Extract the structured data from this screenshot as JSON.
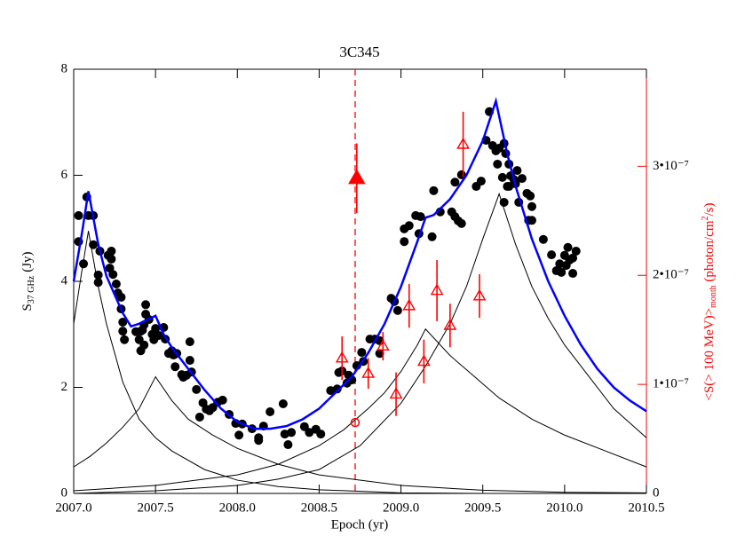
{
  "chart_data": {
    "type": "scatter",
    "title": "3C345",
    "x_label": "Epoch (yr)",
    "y_label": {
      "main": "S",
      "sub": "37 GHz",
      "unit": "(Jy)"
    },
    "y2_label": {
      "text1": "<S(> 100 MeV)>",
      "sub": "month",
      "text2": " (photon/cm",
      "sup": "2",
      "text3": "/s)"
    },
    "y2_color": "#ff0000",
    "xlim": [
      2007.0,
      2010.5
    ],
    "xticks": [
      {
        "value": 2007.0,
        "label": "2007.0"
      },
      {
        "value": 2007.5,
        "label": "2007.5"
      },
      {
        "value": 2008.0,
        "label": "2008.0"
      },
      {
        "value": 2008.5,
        "label": "2008.5"
      },
      {
        "value": 2009.0,
        "label": "2009.0"
      },
      {
        "value": 2009.5,
        "label": "2009.5"
      },
      {
        "value": 2010.0,
        "label": "2010.0"
      },
      {
        "value": 2010.5,
        "label": "2010.5"
      }
    ],
    "ylim": [
      0,
      8
    ],
    "yticks": [
      0,
      2,
      4,
      6,
      8
    ],
    "y2lim": [
      0,
      3.89e-07
    ],
    "y2ticks": [
      0,
      {
        "value": 1e-07,
        "label": "1•10⁻⁷"
      },
      {
        "value": 2e-07,
        "label": "2•10⁻⁷"
      },
      {
        "value": 3e-07,
        "label": "3•10⁻⁷"
      }
    ],
    "vline": {
      "x": 2008.72,
      "color": "#ff0000",
      "dashed": true
    },
    "series": [
      {
        "type": "scatter",
        "marker": "circle",
        "color": "#000000",
        "x": [
          2007.03,
          2007.03,
          2007.06,
          2007.08,
          2007.09,
          2007.12,
          2007.12,
          2007.15,
          2007.15,
          2007.16,
          2007.21,
          2007.23,
          2007.23,
          2007.22,
          2007.24,
          2007.26,
          2007.27,
          2007.29,
          2007.29,
          2007.3,
          2007.3,
          2007.31,
          2007.38,
          2007.4,
          2007.41,
          2007.42,
          2007.43,
          2007.44,
          2007.44,
          2007.46,
          2007.48,
          2007.49,
          2007.5,
          2007.52,
          2007.55,
          2007.56,
          2007.41,
          2007.43,
          2007.58,
          2007.6,
          2007.61,
          2007.62,
          2007.63,
          2007.66,
          2007.67,
          2007.69,
          2007.71,
          2007.71,
          2007.72,
          2007.75,
          2007.77,
          2007.79,
          2007.81,
          2007.83,
          2007.85,
          2007.88,
          2007.91,
          2007.95,
          2007.99,
          2008.01,
          2008.03,
          2008.09,
          2008.13,
          2008.13,
          2008.16,
          2008.2,
          2008.28,
          2008.29,
          2008.31,
          2008.33,
          2008.41,
          2008.44,
          2008.48,
          2008.51,
          2008.57,
          2008.61,
          2008.62,
          2008.64,
          2008.67,
          2008.68,
          2008.7,
          2008.73,
          2008.76,
          2008.77,
          2008.81,
          2008.84,
          2008.87,
          2008.87,
          2008.94,
          2008.96,
          2008.98,
          2009.02,
          2009.02,
          2009.05,
          2009.09,
          2009.11,
          2009.12,
          2009.19,
          2009.2,
          2009.24,
          2009.31,
          2009.33,
          2009.35,
          2009.37,
          2009.33,
          2009.37,
          2009.46,
          2009.49,
          2009.52,
          2009.54,
          2009.56,
          2009.58,
          2009.59,
          2009.6,
          2009.62,
          2009.63,
          2009.63,
          2009.64,
          2009.65,
          2009.66,
          2009.66,
          2009.67,
          2009.69,
          2009.7,
          2009.71,
          2009.72,
          2009.74,
          2009.77,
          2009.78,
          2009.8,
          2009.8,
          2009.79,
          2009.87,
          2009.92,
          2009.95,
          2009.97,
          2010.0,
          2010.01,
          2010.03,
          2010.05,
          2010.07,
          2010.05,
          2009.98,
          2010.02
        ],
        "values": [
          5.24,
          4.75,
          4.33,
          5.59,
          5.24,
          5.24,
          4.69,
          4.12,
          3.98,
          4.57,
          4.49,
          4.57,
          4.42,
          4.25,
          4.13,
          3.95,
          3.78,
          3.7,
          3.48,
          3.23,
          3.06,
          2.9,
          3.05,
          2.9,
          3.06,
          3.08,
          3.18,
          3.38,
          3.56,
          3.28,
          3.0,
          2.9,
          3.11,
          2.98,
          3.13,
          2.91,
          2.69,
          2.8,
          2.64,
          2.69,
          2.61,
          2.39,
          2.64,
          2.24,
          2.19,
          2.23,
          2.86,
          2.51,
          2.29,
          1.96,
          1.44,
          1.71,
          1.59,
          1.56,
          1.62,
          1.72,
          1.76,
          1.49,
          1.32,
          1.1,
          1.31,
          1.22,
          1.0,
          1.05,
          1.27,
          1.54,
          1.69,
          1.12,
          0.92,
          1.15,
          1.26,
          1.15,
          1.21,
          1.12,
          1.94,
          1.97,
          2.28,
          2.31,
          2.08,
          2.23,
          2.14,
          2.41,
          2.66,
          2.49,
          2.91,
          2.91,
          2.88,
          2.64,
          3.68,
          3.62,
          3.45,
          4.75,
          4.99,
          5.05,
          5.24,
          4.9,
          5.22,
          4.84,
          5.71,
          5.31,
          5.31,
          5.22,
          5.14,
          5.09,
          5.87,
          6.01,
          5.79,
          5.89,
          6.66,
          7.2,
          6.56,
          6.46,
          6.21,
          6.51,
          5.96,
          6.6,
          5.49,
          6.41,
          5.79,
          6.21,
          5.79,
          5.99,
          5.92,
          5.84,
          6.09,
          5.49,
          5.94,
          5.66,
          5.15,
          5.15,
          5.41,
          5.61,
          4.79,
          4.5,
          4.2,
          4.33,
          4.49,
          4.3,
          4.4,
          4.44,
          4.57,
          4.15,
          4.17,
          4.64
        ]
      },
      {
        "type": "line",
        "color": "#0000ff",
        "linewidth": 2.5,
        "x": [
          2007.0,
          2007.05,
          2007.09,
          2007.15,
          2007.2,
          2007.3,
          2007.35,
          2007.4,
          2007.5,
          2007.55,
          2007.6,
          2007.7,
          2007.8,
          2007.9,
          2008.0,
          2008.1,
          2008.2,
          2008.3,
          2008.4,
          2008.5,
          2008.6,
          2008.7,
          2008.8,
          2008.9,
          2009.0,
          2009.1,
          2009.15,
          2009.2,
          2009.3,
          2009.4,
          2009.5,
          2009.58,
          2009.65,
          2009.7,
          2009.8,
          2009.9,
          2010.0,
          2010.1,
          2010.2,
          2010.3,
          2010.4,
          2010.5
        ],
        "values": [
          4.0,
          4.9,
          5.7,
          4.7,
          4.1,
          3.4,
          3.15,
          3.2,
          3.35,
          3.0,
          2.75,
          2.35,
          1.95,
          1.6,
          1.35,
          1.22,
          1.22,
          1.27,
          1.4,
          1.6,
          1.9,
          2.2,
          2.65,
          3.2,
          3.9,
          4.75,
          5.2,
          5.25,
          5.55,
          6.0,
          6.65,
          7.4,
          6.4,
          5.8,
          4.8,
          4.0,
          3.35,
          2.8,
          2.35,
          2.0,
          1.75,
          1.55
        ]
      },
      {
        "type": "line",
        "color": "#000000",
        "linewidth": 1,
        "x": [
          2007.0,
          2007.05,
          2007.09,
          2007.15,
          2007.2,
          2007.3,
          2007.4,
          2007.5,
          2007.6,
          2007.8,
          2008.0,
          2008.25,
          2008.5,
          2009.0,
          2009.5,
          2010.5
        ],
        "values": [
          3.2,
          4.2,
          4.95,
          3.9,
          3.2,
          2.1,
          1.4,
          1.05,
          0.8,
          0.45,
          0.25,
          0.13,
          0.07,
          0.01,
          0.0,
          0.0
        ]
      },
      {
        "type": "line",
        "color": "#000000",
        "linewidth": 1,
        "x": [
          2007.0,
          2007.1,
          2007.2,
          2007.3,
          2007.4,
          2007.5,
          2007.6,
          2007.7,
          2007.85,
          2008.0,
          2008.25,
          2008.5,
          2009.0,
          2009.5,
          2010.0,
          2010.5
        ],
        "values": [
          0.5,
          0.7,
          0.95,
          1.25,
          1.6,
          2.2,
          1.75,
          1.4,
          1.1,
          0.85,
          0.55,
          0.35,
          0.15,
          0.06,
          0.02,
          0.01
        ]
      },
      {
        "type": "line",
        "color": "#000000",
        "linewidth": 1,
        "x": [
          2007.0,
          2007.5,
          2008.0,
          2008.25,
          2008.5,
          2008.65,
          2008.8,
          2008.9,
          2009.0,
          2009.1,
          2009.15,
          2009.3,
          2009.45,
          2009.6,
          2009.8,
          2010.0,
          2010.25,
          2010.5
        ],
        "values": [
          0.05,
          0.15,
          0.35,
          0.55,
          0.9,
          1.2,
          1.6,
          1.9,
          2.3,
          2.8,
          3.1,
          2.6,
          2.2,
          1.8,
          1.4,
          1.1,
          0.8,
          0.5
        ]
      },
      {
        "type": "line",
        "color": "#000000",
        "linewidth": 1,
        "x": [
          2007.0,
          2007.5,
          2008.0,
          2008.25,
          2008.5,
          2008.75,
          2009.0,
          2009.15,
          2009.3,
          2009.4,
          2009.5,
          2009.6,
          2009.7,
          2009.8,
          2009.9,
          2010.0,
          2010.15,
          2010.3,
          2010.5
        ],
        "values": [
          0.0,
          0.05,
          0.15,
          0.27,
          0.45,
          0.9,
          1.7,
          2.4,
          3.2,
          3.9,
          4.8,
          5.65,
          4.7,
          3.9,
          3.3,
          2.8,
          2.2,
          1.6,
          1.05
        ]
      },
      {
        "type": "errorbar",
        "marker": "triangle-open",
        "color": "#ff0000",
        "axis": "y2",
        "x": [
          2008.64,
          2008.8,
          2008.89,
          2008.97,
          2009.05,
          2009.14,
          2009.22,
          2009.3,
          2009.38,
          2009.48
        ],
        "values": [
          1.24e-07,
          1.1e-07,
          1.35e-07,
          9.1e-08,
          1.72e-07,
          1.21e-07,
          1.86e-07,
          1.54e-07,
          3.2e-07,
          1.81e-07
        ],
        "errors": [
          2e-08,
          1.4e-08,
          1.3e-08,
          2e-08,
          2e-08,
          2e-08,
          2.8e-08,
          2e-08,
          3e-08,
          2e-08
        ]
      },
      {
        "type": "errorbar",
        "marker": "triangle-filled",
        "color": "#ff0000",
        "axis": "y2",
        "x": [
          2008.73
        ],
        "values": [
          2.89e-07
        ],
        "errors": [
          3.2e-08
        ]
      },
      {
        "type": "scatter",
        "marker": "circle-open",
        "color": "#ff0000",
        "axis": "y2",
        "x": [
          2008.72
        ],
        "values": [
          6.5e-08
        ]
      }
    ]
  }
}
